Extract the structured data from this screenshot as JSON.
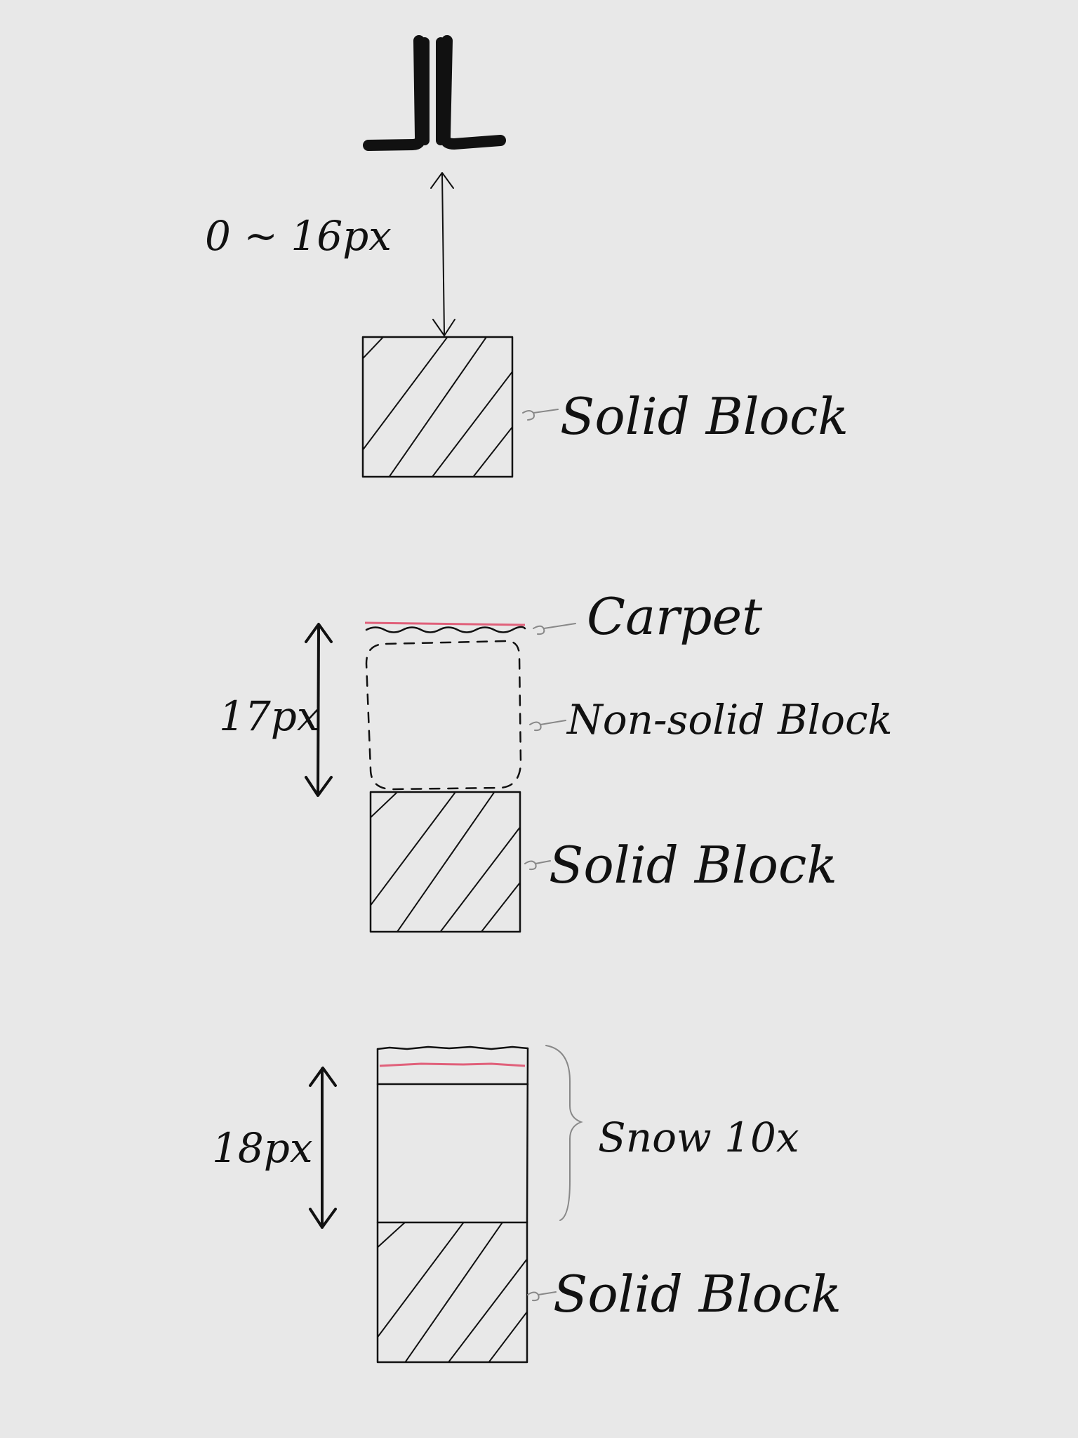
{
  "diagram": {
    "section1": {
      "dimension_label": "0 ~ 16px",
      "block_label": "Solid Block"
    },
    "section2": {
      "dimension_label": "17px",
      "carpet_label": "Carpet",
      "nonsolid_label": "Non-solid Block",
      "block_label": "Solid Block"
    },
    "section3": {
      "dimension_label": "18px",
      "snow_label": "Snow 10x",
      "block_label": "Solid Block"
    }
  },
  "colors": {
    "background": "#e8e8e8",
    "ink": "#111111",
    "leader": "#888888",
    "red_line": "#e0607a"
  }
}
